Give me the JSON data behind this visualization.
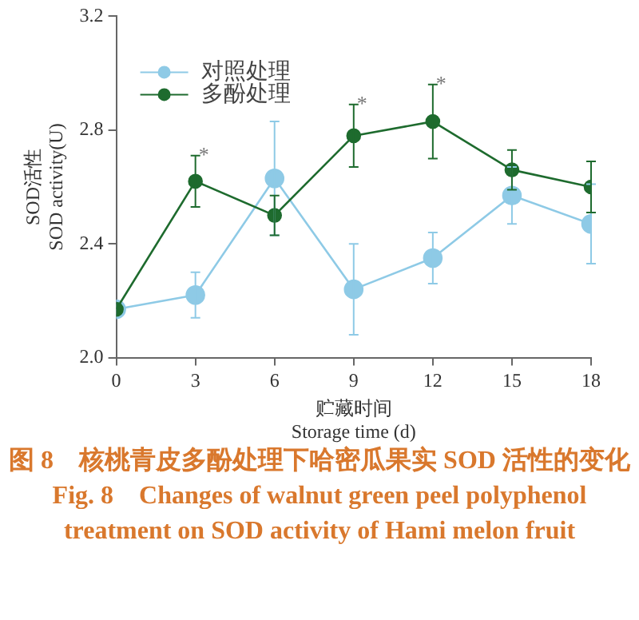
{
  "chart_data": {
    "type": "line",
    "xlabel": "贮藏时间\nStorage time (d)",
    "ylabel": "SOD活性\nSOD activity(U)",
    "x": [
      0,
      3,
      6,
      9,
      12,
      15,
      18
    ],
    "series": [
      {
        "name": "对照处理",
        "color": "#8ecae6",
        "values": [
          2.17,
          2.22,
          2.63,
          2.24,
          2.35,
          2.57,
          2.47
        ],
        "errors": [
          null,
          0.08,
          0.2,
          0.16,
          0.09,
          0.1,
          0.14
        ]
      },
      {
        "name": "多酚处理",
        "color": "#1e6b2e",
        "values": [
          2.17,
          2.62,
          2.5,
          2.78,
          2.83,
          2.66,
          2.6
        ],
        "errors": [
          null,
          0.09,
          0.07,
          0.11,
          0.13,
          0.07,
          0.09
        ]
      }
    ],
    "xlim": [
      0,
      18
    ],
    "xticks": [
      0,
      3,
      6,
      9,
      12,
      15,
      18
    ],
    "ylim": [
      2.0,
      3.2
    ],
    "yticks": [
      {
        "value": 2,
        "label": "2.0"
      },
      2.4,
      2.8,
      3.2
    ],
    "grid": false,
    "legend": "top left",
    "marker": "circle",
    "line_style": "solid",
    "annotations": [
      {
        "text": "*",
        "x": 3,
        "y": 2.71
      },
      {
        "text": "*",
        "x": 9,
        "y": 2.89
      },
      {
        "text": "*",
        "x": 12,
        "y": 2.96
      },
      "图 8　核桃青皮多酚处理下哈密瓜果实 SOD 活性的变化",
      "Fig. 8　Changes of walnut green peel polyphenol treatment on SOD activity of Hami melon fruit"
    ]
  }
}
